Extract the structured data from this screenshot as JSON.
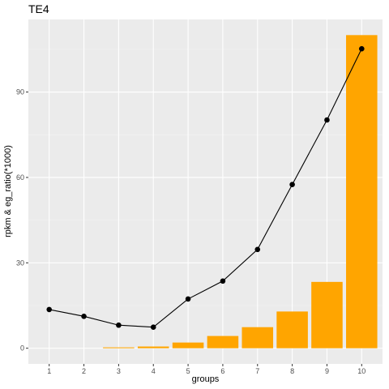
{
  "chart_data": {
    "type": "bar",
    "title": "TE4",
    "xlabel": "groups",
    "ylabel": "rpkm & eg_ratio(*1000)",
    "categories": [
      "1",
      "2",
      "3",
      "4",
      "5",
      "6",
      "7",
      "8",
      "9",
      "10"
    ],
    "series": [
      {
        "type": "bar",
        "values": [
          0,
          0,
          0.3,
          0.6,
          2.0,
          4.3,
          7.4,
          12.9,
          23.3,
          110.0
        ]
      },
      {
        "type": "line",
        "values": [
          13.6,
          11.2,
          8.1,
          7.4,
          17.3,
          23.6,
          34.7,
          57.5,
          80.2,
          105.2
        ]
      }
    ],
    "yticks": [
      0,
      30,
      60,
      90
    ],
    "ylim": [
      -5.5,
      115.5
    ],
    "grid": true,
    "legend": "none",
    "colors": {
      "panel": "#ebebeb",
      "grid_major": "#ffffff",
      "grid_minor": "#f4f4f4",
      "bar": "#ffa500",
      "line": "#000000"
    }
  }
}
